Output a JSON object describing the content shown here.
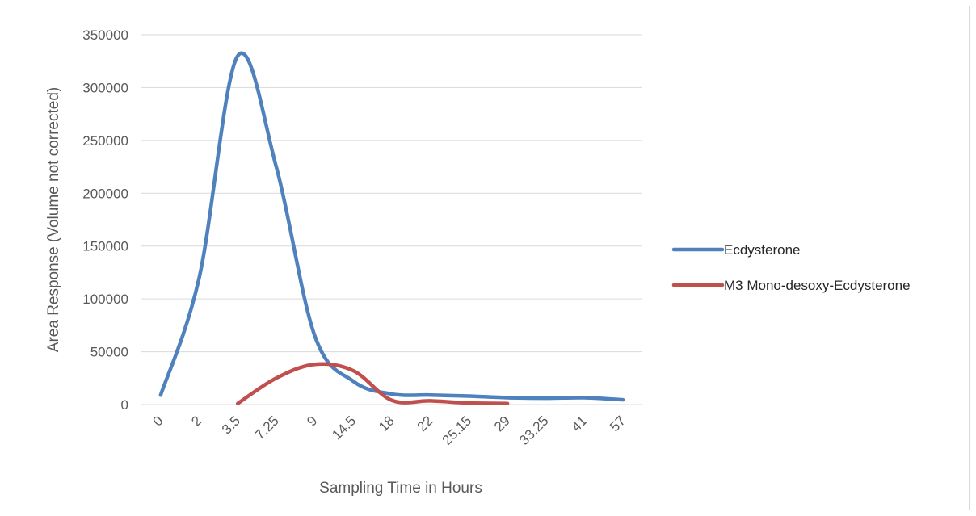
{
  "chart_data": {
    "type": "line",
    "title": "",
    "xlabel": "Sampling Time in Hours",
    "ylabel": "Area Response (Volume not corrected)",
    "categories": [
      "0",
      "2",
      "3.5",
      "7.25",
      "9",
      "14.5",
      "18",
      "22",
      "25.15",
      "29",
      "33.25",
      "41",
      "57"
    ],
    "ylim": [
      0,
      350000
    ],
    "yticks": [
      "0",
      "50000",
      "100000",
      "150000",
      "200000",
      "250000",
      "300000",
      "350000"
    ],
    "grid": true,
    "legend_position": "right",
    "series": [
      {
        "name": "Ecdysterone",
        "color": "#4f81bd",
        "values": [
          9000,
          120000,
          330000,
          225000,
          65000,
          22000,
          10000,
          9000,
          8000,
          6500,
          6000,
          6500,
          4500
        ]
      },
      {
        "name": "M3 Mono-desoxy-Ecdysterone",
        "color": "#c0504d",
        "values": [
          null,
          null,
          1000,
          25000,
          38000,
          32000,
          4000,
          3500,
          1500,
          1000,
          null,
          null,
          null
        ]
      }
    ]
  }
}
